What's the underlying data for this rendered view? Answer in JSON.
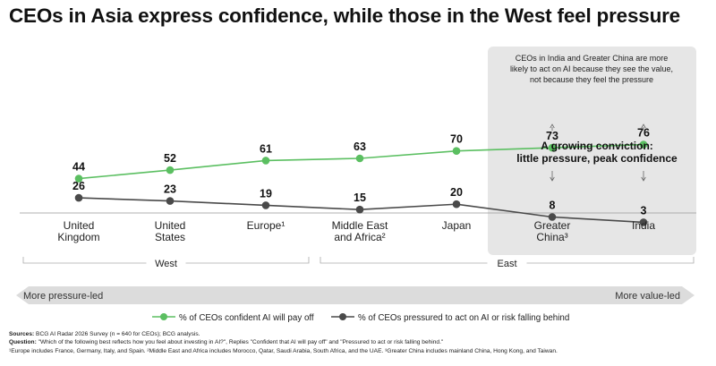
{
  "title": "CEOs in Asia express confidence, while those in the West feel pressure",
  "chart_data": {
    "type": "line",
    "categories": [
      [
        "United",
        "Kingdom"
      ],
      [
        "United",
        "States"
      ],
      [
        "Europe¹"
      ],
      [
        "Middle East",
        "and Africa²"
      ],
      [
        "Japan"
      ],
      [
        "Greater",
        "China³"
      ],
      [
        "India"
      ]
    ],
    "series": [
      {
        "name": "% of CEOs confident AI will pay off",
        "color": "#5bbf61",
        "values": [
          44,
          52,
          61,
          63,
          70,
          73,
          76
        ]
      },
      {
        "name": "% of CEOs pressured to act on AI or risk falling behind",
        "color": "#4a4a4a",
        "values": [
          26,
          23,
          19,
          15,
          20,
          8,
          3
        ]
      }
    ],
    "ylim": [
      0,
      100
    ],
    "highlight": {
      "categories": [
        5,
        6
      ],
      "note": [
        "CEOs in India and Greater China are more",
        "likely to act on AI because they see the value,",
        "not because they feel the pressure"
      ],
      "callout": [
        "A growing conviction:",
        "little pressure, peak confidence"
      ]
    },
    "groups": [
      {
        "label": "West",
        "from": 0,
        "to": 2
      },
      {
        "label": "East",
        "from": 3,
        "to": 6
      }
    ],
    "scale": {
      "left": "More pressure-led",
      "right": "More value-led"
    },
    "legend_position": "bottom"
  },
  "footnotes": {
    "sources_label": "Sources:",
    "sources": " BCG AI Radar 2026 Survey (n = 640 for CEOs); BCG analysis.",
    "question_label": "Question:",
    "question": " \"Which of the following best reflects how you feel about investing in AI?\", Replies \"Confident that AI will pay off\" and \"Pressured to act or risk falling behind.\"",
    "notes": "¹Europe includes France, Germany, Italy, and Spain. ²Middle East and Africa includes Morocco, Qatar, Saudi Arabia, South Africa, and the UAE. ³Greater China includes mainland China, Hong Kong, and Taiwan."
  }
}
